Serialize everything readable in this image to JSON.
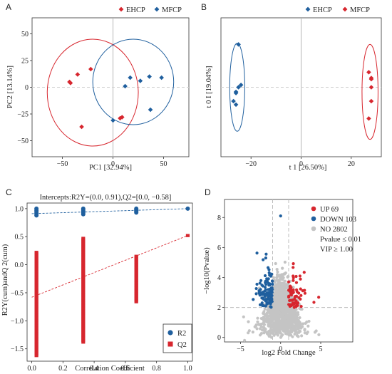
{
  "colors": {
    "red": "#d7262e",
    "blue": "#1f5f9e",
    "grey": "#c4c4c4",
    "refline": "#bdbdbd"
  },
  "chart_data": [
    {
      "panel": "A",
      "type": "scatter",
      "xlabel": "PC1 [32.94%]",
      "ylabel": "PC2 [13.14%]",
      "xlim": [
        -80,
        75
      ],
      "ylim": [
        -65,
        65
      ],
      "xticks": [
        -50,
        0,
        50
      ],
      "yticks": [
        -50,
        -25,
        0,
        25,
        50
      ],
      "legend": "top-center",
      "series": [
        {
          "name": "EHCP",
          "color": "red",
          "marker": "diamond",
          "x": [
            -43,
            -42,
            -35,
            -22,
            -31,
            9,
            7
          ],
          "y": [
            5,
            4,
            12,
            17,
            -37,
            -28,
            -29
          ],
          "ellipse": {
            "cx": -20,
            "cy": -5,
            "rx": 45,
            "ry": 50
          }
        },
        {
          "name": "MFCP",
          "color": "blue",
          "marker": "diamond",
          "x": [
            0,
            17,
            36,
            48,
            27,
            37,
            12
          ],
          "y": [
            -31,
            9,
            10,
            9,
            6,
            -21,
            1
          ],
          "ellipse": {
            "cx": 20,
            "cy": 5,
            "rx": 40,
            "ry": 40
          }
        }
      ]
    },
    {
      "panel": "B",
      "type": "scatter",
      "xlabel": "t 1 [26.50%]",
      "ylabel": "t 0 I [19.04%]",
      "xlim": [
        -32,
        32
      ],
      "ylim": [
        -60,
        60
      ],
      "xticks": [
        -20,
        0,
        20
      ],
      "yticks": [],
      "legend": "top-center",
      "series": [
        {
          "name": "EHCP",
          "color": "blue",
          "marker": "diamond",
          "x": [
            -25,
            -24,
            -25,
            -26,
            -26,
            -27,
            -26
          ],
          "y": [
            37,
            2,
            0,
            -4,
            -5,
            -12,
            -15
          ],
          "ellipse": {
            "cx": -25.5,
            "cy": 0,
            "rx": 3,
            "ry": 38
          }
        },
        {
          "name": "MFCP",
          "color": "red",
          "marker": "diamond",
          "x": [
            27,
            28,
            28,
            28,
            27,
            28
          ],
          "y": [
            13,
            8,
            0,
            -12,
            -27,
            7
          ],
          "ellipse": {
            "cx": 27.5,
            "cy": -4,
            "rx": 3.2,
            "ry": 41
          }
        }
      ]
    },
    {
      "panel": "C",
      "type": "scatter",
      "title": "Intercepts:R2Y=(0.0, 0.91),Q2=[0.0, −0.58]",
      "xlabel": "Correlation Coefficient",
      "ylabel": "R2Y(cum)andQ 2(cum)",
      "xlim": [
        -0.03,
        1.03
      ],
      "ylim": [
        -1.72,
        1.1
      ],
      "xticks": [
        0.0,
        0.2,
        0.4,
        0.6,
        0.8,
        1.0
      ],
      "yticks": [
        1.0,
        0.5,
        0.0,
        -0.5,
        -1.0,
        -1.5
      ],
      "legend": "bottom-right",
      "series": [
        {
          "name": "R2",
          "color": "blue",
          "marker": "circle",
          "clusters": [
            {
              "x": 0.03,
              "ymin": 0.88,
              "ymax": 1.0
            },
            {
              "x": 0.33,
              "ymin": 0.9,
              "ymax": 1.0
            },
            {
              "x": 0.67,
              "ymin": 0.93,
              "ymax": 1.0
            },
            {
              "x": 1.0,
              "ymin": 1.0,
              "ymax": 1.0
            }
          ],
          "trend": {
            "intercept": 0.91,
            "end": 1.0
          }
        },
        {
          "name": "Q2",
          "color": "red",
          "marker": "square",
          "clusters": [
            {
              "x": 0.03,
              "ymin": -1.62,
              "ymax": 0.22
            },
            {
              "x": 0.33,
              "ymin": -1.38,
              "ymax": 0.47
            },
            {
              "x": 0.67,
              "ymin": -0.66,
              "ymax": 0.15
            },
            {
              "x": 1.0,
              "ymin": 0.52,
              "ymax": 0.52
            }
          ],
          "trend": {
            "intercept": -0.58,
            "end": 0.52
          }
        }
      ]
    },
    {
      "panel": "D",
      "type": "scatter",
      "subtype": "volcano",
      "xlabel": "log2 Fold Change",
      "ylabel": "−log10(Pvalue)",
      "xlim": [
        -7,
        9
      ],
      "ylim": [
        -0.3,
        9.2
      ],
      "xticks": [
        -5,
        0,
        5
      ],
      "yticks": [
        0,
        2,
        4,
        6,
        8
      ],
      "thresholds": {
        "y": 2,
        "x": [
          -1,
          1
        ]
      },
      "legend": "top-right",
      "legend_items": [
        {
          "label": "UP 69",
          "color": "red"
        },
        {
          "label": "DOWN 103",
          "color": "blue"
        },
        {
          "label": "NO 2802",
          "color": "grey"
        },
        {
          "label": "Pvalue ≤ 0.01",
          "color": ""
        },
        {
          "label": "VIP ≥ 1.00",
          "color": ""
        }
      ],
      "series": [
        {
          "name": "UP",
          "color": "red",
          "count": 69
        },
        {
          "name": "DOWN",
          "color": "blue",
          "count": 103
        },
        {
          "name": "NO",
          "color": "grey",
          "count": 2802
        }
      ]
    }
  ]
}
